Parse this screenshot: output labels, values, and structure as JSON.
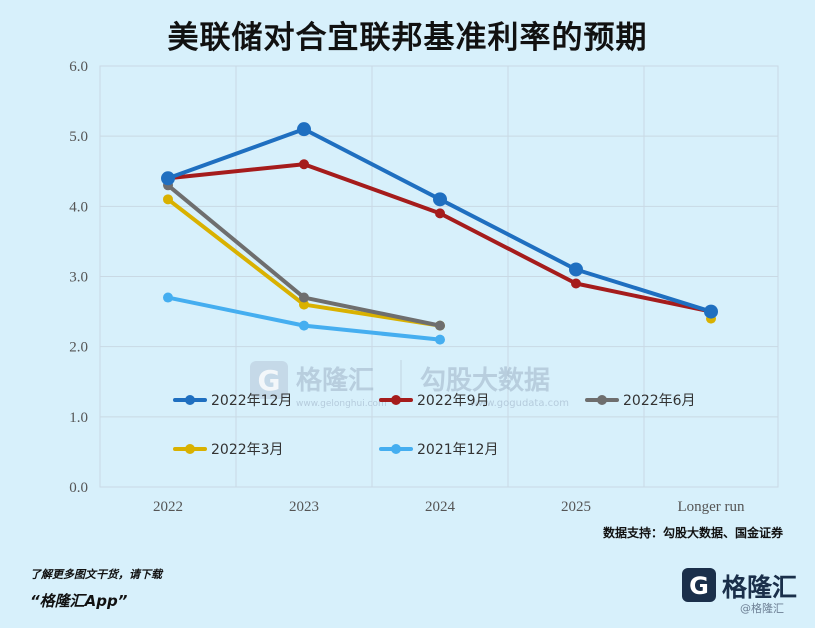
{
  "title": "美联储对合宜联邦基准利率的预期",
  "source": "数据支持：勾股大数据、国金证券",
  "footer": {
    "line1": "了解更多图文干货，请下载",
    "line2": "“格隆汇App”"
  },
  "watermark": {
    "brand": "格隆汇",
    "site": "www.gelonghui.com",
    "data_brand": "勾股大数据",
    "data_site": "www.gogudata.com"
  },
  "brand_logo": {
    "name": "格隆汇",
    "sub": "@格隆汇"
  },
  "chart_data": {
    "type": "line",
    "title": "美联储对合宜联邦基准利率的预期",
    "categories": [
      "2022",
      "2023",
      "2024",
      "2025",
      "Longer run"
    ],
    "ylim": [
      0,
      6
    ],
    "yticks": [
      "0.0",
      "1.0",
      "2.0",
      "3.0",
      "4.0",
      "5.0",
      "6.0"
    ],
    "grid": true,
    "legend_position": "lower-left inside plot",
    "series": [
      {
        "name": "2022年12月",
        "color": "#1f6fc0",
        "values": [
          4.4,
          5.1,
          4.1,
          3.1,
          2.5
        ],
        "big": true
      },
      {
        "name": "2022年9月",
        "color": "#a51c1c",
        "values": [
          4.4,
          4.6,
          3.9,
          2.9,
          2.5
        ],
        "big": false
      },
      {
        "name": "2022年6月",
        "color": "#6e6e6e",
        "values": [
          4.3,
          2.7,
          2.3,
          null,
          null
        ],
        "big": false
      },
      {
        "name": "2022年3月",
        "color": "#d9b100",
        "values": [
          4.1,
          2.6,
          2.3,
          null,
          2.4
        ],
        "big": false
      },
      {
        "name": "2021年12月",
        "color": "#45aef0",
        "values": [
          2.7,
          2.3,
          2.1,
          null,
          null
        ],
        "big": false
      }
    ]
  }
}
